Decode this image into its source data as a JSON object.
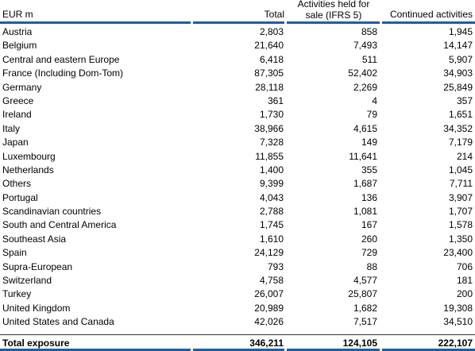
{
  "header": {
    "label": "EUR m",
    "total": "Total",
    "afs_line1": "Activities held for",
    "afs_line2": "sale (IFRS 5)",
    "continued": "Continued activities"
  },
  "rows": [
    {
      "label": "Austria",
      "total": "2,803",
      "afs": "858",
      "continued": "1,945"
    },
    {
      "label": "Belgium",
      "total": "21,640",
      "afs": "7,493",
      "continued": "14,147"
    },
    {
      "label": "Central and eastern Europe",
      "total": "6,418",
      "afs": "511",
      "continued": "5,907"
    },
    {
      "label": "France (Including Dom-Tom)",
      "total": "87,305",
      "afs": "52,402",
      "continued": "34,903"
    },
    {
      "label": "Germany",
      "total": "28,118",
      "afs": "2,269",
      "continued": "25,849"
    },
    {
      "label": "Greece",
      "total": "361",
      "afs": "4",
      "continued": "357"
    },
    {
      "label": "Ireland",
      "total": "1,730",
      "afs": "79",
      "continued": "1,651"
    },
    {
      "label": "Italy",
      "total": "38,966",
      "afs": "4,615",
      "continued": "34,352"
    },
    {
      "label": "Japan",
      "total": "7,328",
      "afs": "149",
      "continued": "7,179"
    },
    {
      "label": "Luxembourg",
      "total": "11,855",
      "afs": "11,641",
      "continued": "214"
    },
    {
      "label": "Netherlands",
      "total": "1,400",
      "afs": "355",
      "continued": "1,045"
    },
    {
      "label": "Others",
      "total": "9,399",
      "afs": "1,687",
      "continued": "7,711"
    },
    {
      "label": "Portugal",
      "total": "4,043",
      "afs": "136",
      "continued": "3,907"
    },
    {
      "label": "Scandinavian countries",
      "total": "2,788",
      "afs": "1,081",
      "continued": "1,707"
    },
    {
      "label": "South and Central America",
      "total": "1,745",
      "afs": "167",
      "continued": "1,578"
    },
    {
      "label": "Southeast Asia",
      "total": "1,610",
      "afs": "260",
      "continued": "1,350"
    },
    {
      "label": "Spain",
      "total": "24,129",
      "afs": "729",
      "continued": "23,400"
    },
    {
      "label": "Supra-European",
      "total": "793",
      "afs": "88",
      "continued": "706"
    },
    {
      "label": "Switzerland",
      "total": "4,758",
      "afs": "4,577",
      "continued": "181"
    },
    {
      "label": "Turkey",
      "total": "26,007",
      "afs": "25,807",
      "continued": "200"
    },
    {
      "label": "United Kingdom",
      "total": "20,989",
      "afs": "1,682",
      "continued": "19,308"
    },
    {
      "label": "United States and Canada",
      "total": "42,026",
      "afs": "7,517",
      "continued": "34,510"
    }
  ],
  "total_row": {
    "label": "Total exposure",
    "total": "346,211",
    "afs": "124,105",
    "continued": "222,107"
  },
  "colors": {
    "rule_blue": "#1b5ea8",
    "text": "#000000"
  }
}
